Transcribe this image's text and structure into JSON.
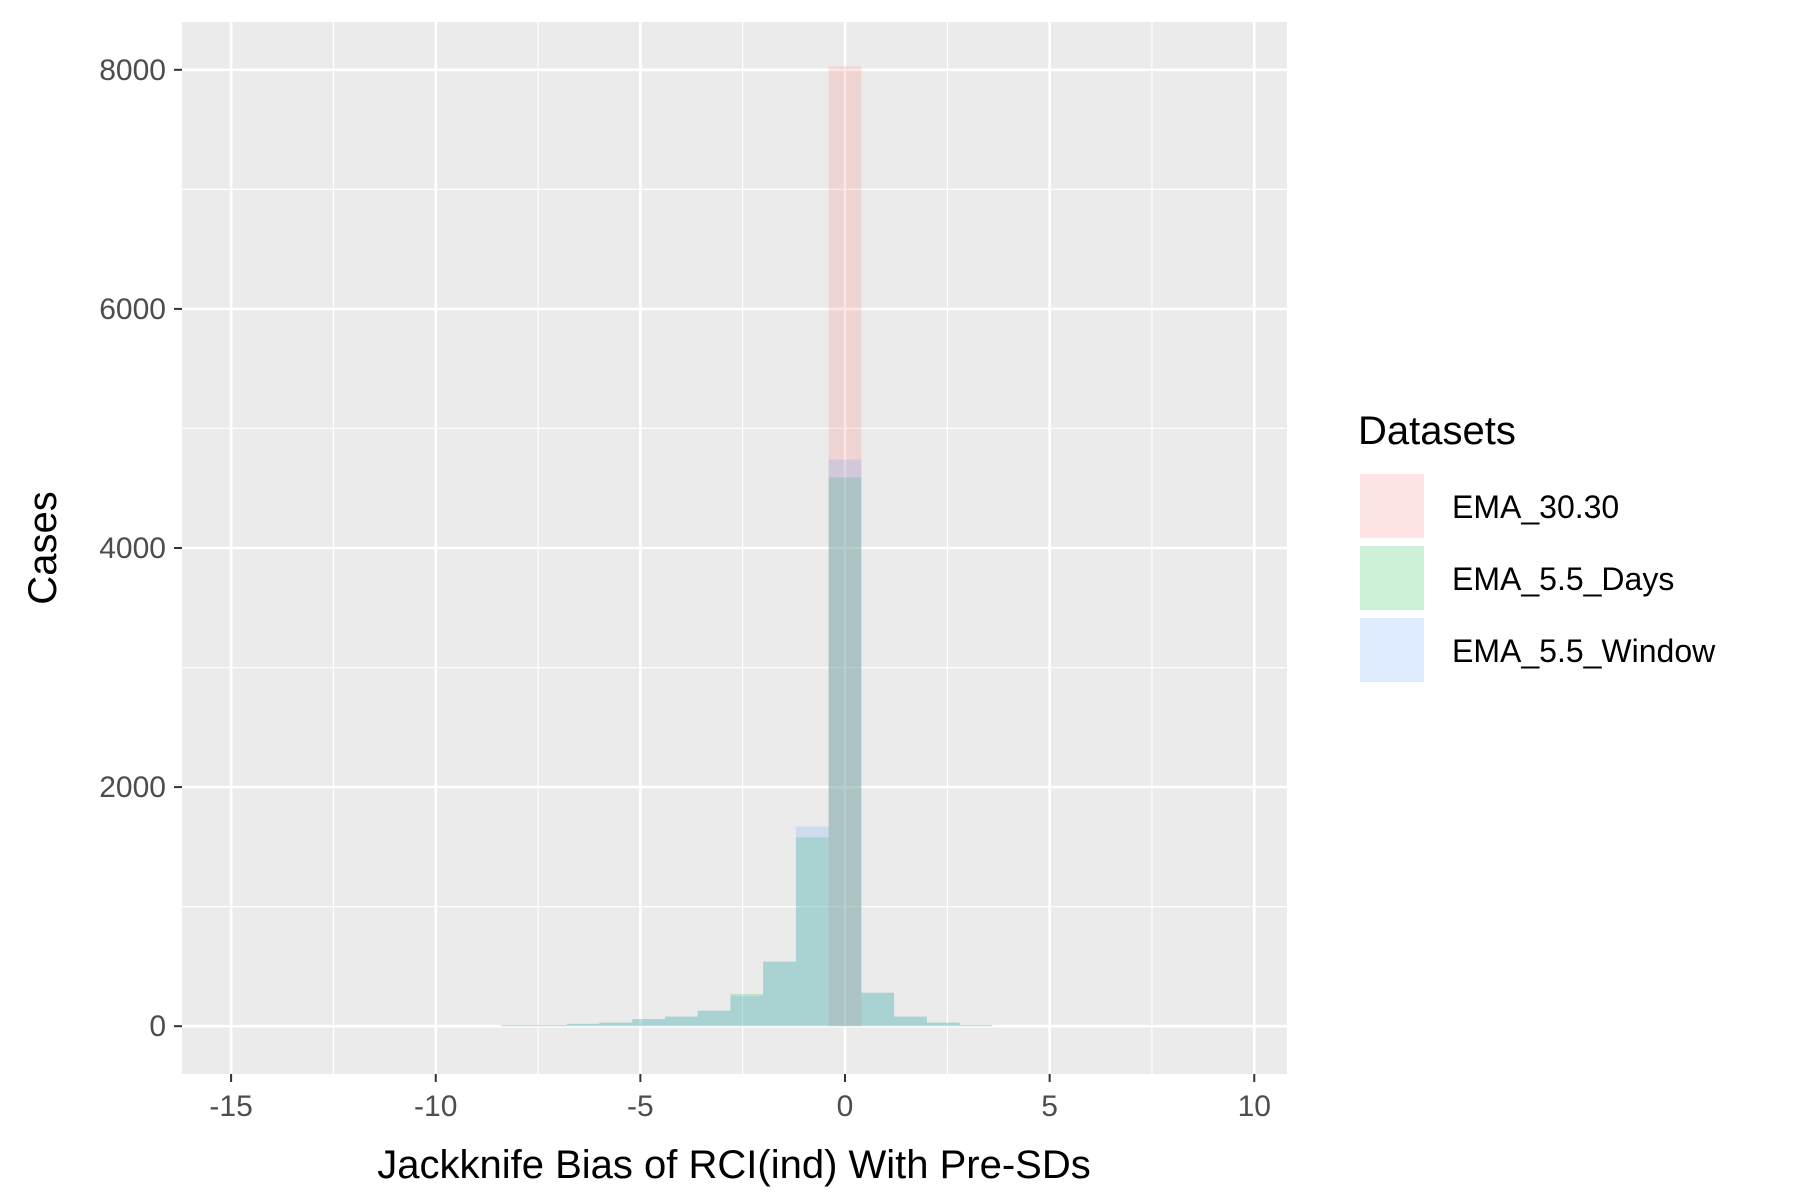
{
  "chart_data": {
    "type": "bar",
    "xlabel": "Jackknife Bias of RCI(ind) With Pre-SDs",
    "ylabel": "Cases",
    "xlim": [
      -16.2,
      10.8
    ],
    "ylim": [
      -400,
      8400
    ],
    "x_ticks": [
      -15,
      -10,
      -5,
      0,
      5,
      10
    ],
    "x_tick_labels": [
      "-15",
      "-10",
      "-5",
      "0",
      "5",
      "10"
    ],
    "y_ticks": [
      0,
      2000,
      4000,
      6000,
      8000
    ],
    "y_tick_labels": [
      "0",
      "2000",
      "4000",
      "6000",
      "8000"
    ],
    "grid": true,
    "bin_width": 0.8,
    "legend": {
      "title": "Datasets",
      "position": "right"
    },
    "series": [
      {
        "name": "EMA_30.30",
        "color": "#F8766D",
        "bins": [
          {
            "x": 0.0,
            "value": 8030
          }
        ]
      },
      {
        "name": "EMA_5.5_Days",
        "color": "#00BA38",
        "bins": [
          {
            "x": -8.0,
            "value": 10
          },
          {
            "x": -7.2,
            "value": 10
          },
          {
            "x": -6.4,
            "value": 20
          },
          {
            "x": -5.6,
            "value": 30
          },
          {
            "x": -4.8,
            "value": 60
          },
          {
            "x": -4.0,
            "value": 80
          },
          {
            "x": -3.2,
            "value": 130
          },
          {
            "x": -2.4,
            "value": 270
          },
          {
            "x": -1.6,
            "value": 540
          },
          {
            "x": -0.8,
            "value": 1580
          },
          {
            "x": 0.0,
            "value": 4590
          },
          {
            "x": 0.8,
            "value": 280
          },
          {
            "x": 1.6,
            "value": 80
          },
          {
            "x": 2.4,
            "value": 30
          },
          {
            "x": 3.2,
            "value": 10
          }
        ]
      },
      {
        "name": "EMA_5.5_Window",
        "color": "#619CFF",
        "bins": [
          {
            "x": -8.0,
            "value": 10
          },
          {
            "x": -7.2,
            "value": 10
          },
          {
            "x": -6.4,
            "value": 20
          },
          {
            "x": -5.6,
            "value": 30
          },
          {
            "x": -4.8,
            "value": 60
          },
          {
            "x": -4.0,
            "value": 80
          },
          {
            "x": -3.2,
            "value": 130
          },
          {
            "x": -2.4,
            "value": 250
          },
          {
            "x": -1.6,
            "value": 540
          },
          {
            "x": -0.8,
            "value": 1670
          },
          {
            "x": 0.0,
            "value": 4740
          },
          {
            "x": 0.8,
            "value": 280
          },
          {
            "x": 1.6,
            "value": 80
          },
          {
            "x": 2.4,
            "value": 30
          },
          {
            "x": 3.2,
            "value": 10
          }
        ]
      }
    ]
  }
}
